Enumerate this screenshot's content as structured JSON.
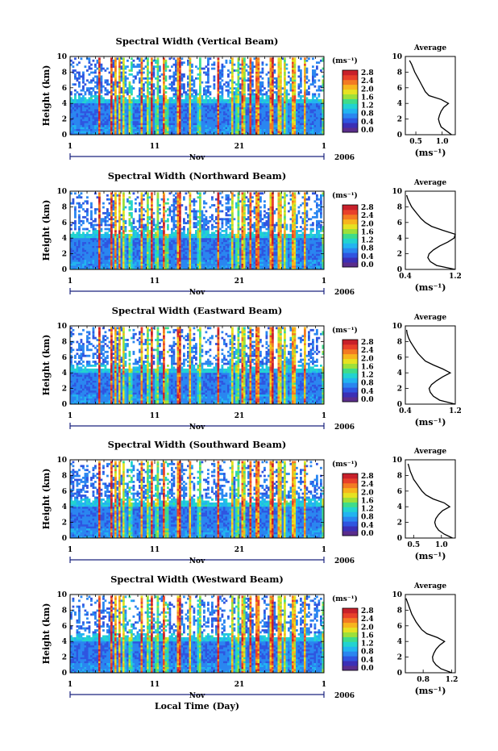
{
  "x_axis_label": "Local Time (Day)",
  "month_label": "Nov",
  "year_label": "2006",
  "y_axis_label": "Height (km)",
  "avg_title": "Average",
  "unit_label": "(ms⁻¹)",
  "colorbar_ticks": [
    "0.0",
    "0.4",
    "0.8",
    "1.2",
    "1.6",
    "2.0",
    "2.4",
    "2.8"
  ],
  "colors": {
    "palette": [
      "#5a2d8c",
      "#3b2fb6",
      "#2f55e0",
      "#2a86f0",
      "#22b4f0",
      "#22d3d0",
      "#3fdc8a",
      "#9de03a",
      "#e6e222",
      "#f7b51d",
      "#f37a22",
      "#e8402a",
      "#c8202a"
    ],
    "axis": "#000000",
    "time_axis": "#1a237e"
  },
  "chart_data": [
    {
      "type": "heatmap",
      "title": "Spectral Width (Vertical Beam)",
      "xlabel": "Local Time (Day)",
      "ylabel": "Height (km)",
      "x_ticks": [
        "1",
        "11",
        "21",
        "1"
      ],
      "y_ticks": [
        0,
        2,
        4,
        6,
        8,
        10
      ],
      "ylim": [
        0,
        10
      ],
      "colorbar_unit": "(ms⁻¹)",
      "colorbar_ticks": [
        "0.0",
        "0.4",
        "0.8",
        "1.2",
        "1.6",
        "2.0",
        "2.4",
        "2.8"
      ],
      "average_profile": {
        "title": "Average",
        "xlabel": "(ms⁻¹)",
        "x_ticks": [
          "0.5",
          "1.0"
        ],
        "xlim": [
          0.3,
          1.25
        ],
        "height_km": [
          0,
          0.5,
          1,
          1.5,
          2,
          2.5,
          3,
          3.5,
          4,
          4.5,
          5,
          5.5,
          6,
          6.5,
          7,
          7.5,
          8,
          8.5,
          9,
          9.5
        ],
        "value": [
          1.18,
          1.08,
          0.98,
          0.95,
          0.93,
          0.95,
          0.98,
          1.03,
          1.12,
          0.98,
          0.75,
          0.68,
          0.64,
          0.6,
          0.56,
          0.52,
          0.48,
          0.45,
          0.42,
          0.38
        ]
      }
    },
    {
      "type": "heatmap",
      "title": "Spectral Width (Northward Beam)",
      "xlabel": "Local Time (Day)",
      "ylabel": "Height (km)",
      "x_ticks": [
        "1",
        "11",
        "21",
        "1"
      ],
      "y_ticks": [
        0,
        2,
        4,
        6,
        8,
        10
      ],
      "ylim": [
        0,
        10
      ],
      "colorbar_unit": "(ms⁻¹)",
      "colorbar_ticks": [
        "0.0",
        "0.4",
        "0.8",
        "1.2",
        "1.6",
        "2.0",
        "2.4",
        "2.8"
      ],
      "average_profile": {
        "title": "Average",
        "xlabel": "(ms⁻¹)",
        "x_ticks": [
          "0.4",
          "1.2"
        ],
        "xlim": [
          0.4,
          1.2
        ],
        "height_km": [
          0,
          0.5,
          1,
          1.5,
          2,
          2.5,
          3,
          3.5,
          4,
          4.5,
          5,
          5.5,
          6,
          6.5,
          7,
          7.5,
          8,
          8.5,
          9,
          9.5
        ],
        "value": [
          1.2,
          0.9,
          0.8,
          0.76,
          0.78,
          0.85,
          0.95,
          1.08,
          1.18,
          1.2,
          1.0,
          0.82,
          0.72,
          0.65,
          0.6,
          0.55,
          0.5,
          0.47,
          0.44,
          0.42
        ]
      }
    },
    {
      "type": "heatmap",
      "title": "Spectral Width (Eastward Beam)",
      "xlabel": "Local Time (Day)",
      "ylabel": "Height (km)",
      "x_ticks": [
        "1",
        "11",
        "21",
        "1"
      ],
      "y_ticks": [
        0,
        2,
        4,
        6,
        8,
        10
      ],
      "ylim": [
        0,
        10
      ],
      "colorbar_unit": "(ms⁻¹)",
      "colorbar_ticks": [
        "0.0",
        "0.4",
        "0.8",
        "1.2",
        "1.6",
        "2.0",
        "2.4",
        "2.8"
      ],
      "average_profile": {
        "title": "Average",
        "xlabel": "(ms⁻¹)",
        "x_ticks": [
          "0.4",
          "1.2"
        ],
        "xlim": [
          0.4,
          1.2
        ],
        "height_km": [
          0,
          0.5,
          1,
          1.5,
          2,
          2.5,
          3,
          3.5,
          4,
          4.5,
          5,
          5.5,
          6,
          6.5,
          7,
          7.5,
          8,
          8.5,
          9,
          9.5
        ],
        "value": [
          1.2,
          0.95,
          0.85,
          0.8,
          0.78,
          0.82,
          0.9,
          1.0,
          1.12,
          1.0,
          0.85,
          0.72,
          0.66,
          0.6,
          0.56,
          0.52,
          0.48,
          0.45,
          0.43,
          0.42
        ]
      }
    },
    {
      "type": "heatmap",
      "title": "Spectral Width (Southward Beam)",
      "xlabel": "Local Time (Day)",
      "ylabel": "Height (km)",
      "x_ticks": [
        "1",
        "11",
        "21",
        "1"
      ],
      "y_ticks": [
        0,
        2,
        4,
        6,
        8,
        10
      ],
      "ylim": [
        0,
        10
      ],
      "colorbar_unit": "(ms⁻¹)",
      "colorbar_ticks": [
        "0.0",
        "0.4",
        "0.8",
        "1.2",
        "1.6",
        "2.0",
        "2.4",
        "2.8"
      ],
      "average_profile": {
        "title": "Average",
        "xlabel": "(ms⁻¹)",
        "x_ticks": [
          "0.5",
          "1.0"
        ],
        "xlim": [
          0.35,
          1.25
        ],
        "height_km": [
          0,
          0.5,
          1,
          1.5,
          2,
          2.5,
          3,
          3.5,
          4,
          4.5,
          5,
          5.5,
          6,
          6.5,
          7,
          7.5,
          8,
          8.5,
          9,
          9.5
        ],
        "value": [
          1.2,
          1.05,
          0.95,
          0.9,
          0.88,
          0.9,
          0.95,
          1.02,
          1.15,
          1.05,
          0.85,
          0.72,
          0.65,
          0.6,
          0.55,
          0.5,
          0.47,
          0.44,
          0.42,
          0.4
        ]
      }
    },
    {
      "type": "heatmap",
      "title": "Spectral Width (Westward Beam)",
      "xlabel": "Local Time (Day)",
      "ylabel": "Height (km)",
      "x_ticks": [
        "1",
        "11",
        "21",
        "1"
      ],
      "y_ticks": [
        0,
        2,
        4,
        6,
        8,
        10
      ],
      "ylim": [
        0,
        10
      ],
      "colorbar_unit": "(ms⁻¹)",
      "colorbar_ticks": [
        "0.0",
        "0.4",
        "0.8",
        "1.2",
        "1.6",
        "2.0",
        "2.4",
        "2.8"
      ],
      "average_profile": {
        "title": "Average",
        "xlabel": "(ms⁻¹)",
        "x_ticks": [
          "0.8",
          "1.2"
        ],
        "xlim": [
          0.55,
          1.25
        ],
        "height_km": [
          0,
          0.5,
          1,
          1.5,
          2,
          2.5,
          3,
          3.5,
          4,
          4.5,
          5,
          5.5,
          6,
          6.5,
          7,
          7.5,
          8,
          8.5,
          9,
          9.5
        ],
        "value": [
          1.2,
          1.05,
          0.98,
          0.94,
          0.93,
          0.95,
          0.98,
          1.03,
          1.1,
          1.0,
          0.85,
          0.78,
          0.74,
          0.7,
          0.67,
          0.64,
          0.62,
          0.6,
          0.58,
          0.56
        ]
      }
    }
  ]
}
